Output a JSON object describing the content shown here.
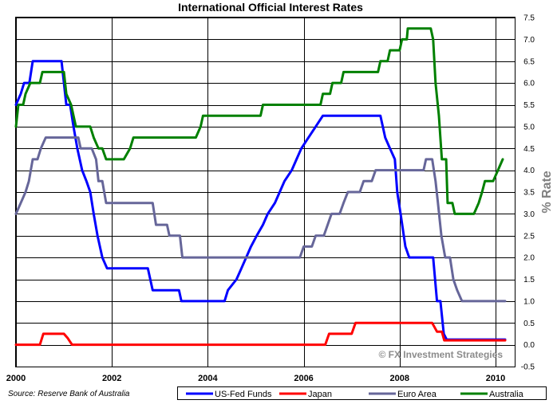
{
  "chart_data": {
    "type": "line",
    "title": "International Official Interest Rates",
    "ylabel": "% Rate",
    "source": "Source: Reserve Bank of Australia",
    "watermark": "© FX Investment Strategies",
    "ylim": [
      -0.5,
      7.5
    ],
    "xlim": [
      2000.0,
      2010.4
    ],
    "x_ticks": [
      "2000",
      "2002",
      "2004",
      "2006",
      "2008",
      "2010"
    ],
    "y_ticks": [
      "-0.5",
      "0.0",
      "0.5",
      "1.0",
      "1.5",
      "2.0",
      "2.5",
      "3.0",
      "3.5",
      "4.0",
      "4.5",
      "5.0",
      "5.5",
      "6.0",
      "6.5",
      "7.0",
      "7.5"
    ],
    "grid": true,
    "legend_position": "bottom",
    "series": [
      {
        "name": "US-Fed Funds",
        "color": "#0000ff",
        "points": [
          [
            2000.0,
            5.5
          ],
          [
            2000.1,
            5.75
          ],
          [
            2000.17,
            6.0
          ],
          [
            2000.28,
            6.0
          ],
          [
            2000.35,
            6.5
          ],
          [
            2000.95,
            6.5
          ],
          [
            2001.0,
            6.0
          ],
          [
            2001.05,
            5.5
          ],
          [
            2001.13,
            5.5
          ],
          [
            2001.2,
            5.0
          ],
          [
            2001.28,
            4.5
          ],
          [
            2001.38,
            4.0
          ],
          [
            2001.47,
            3.75
          ],
          [
            2001.55,
            3.5
          ],
          [
            2001.62,
            3.0
          ],
          [
            2001.7,
            2.5
          ],
          [
            2001.8,
            2.0
          ],
          [
            2001.9,
            1.75
          ],
          [
            2002.75,
            1.75
          ],
          [
            2002.85,
            1.25
          ],
          [
            2003.4,
            1.25
          ],
          [
            2003.45,
            1.0
          ],
          [
            2004.35,
            1.0
          ],
          [
            2004.42,
            1.25
          ],
          [
            2004.6,
            1.5
          ],
          [
            2004.7,
            1.75
          ],
          [
            2004.8,
            2.0
          ],
          [
            2004.9,
            2.25
          ],
          [
            2005.02,
            2.5
          ],
          [
            2005.15,
            2.75
          ],
          [
            2005.25,
            3.0
          ],
          [
            2005.4,
            3.25
          ],
          [
            2005.5,
            3.5
          ],
          [
            2005.6,
            3.75
          ],
          [
            2005.75,
            4.0
          ],
          [
            2005.85,
            4.25
          ],
          [
            2005.95,
            4.5
          ],
          [
            2006.1,
            4.75
          ],
          [
            2006.25,
            5.0
          ],
          [
            2006.4,
            5.25
          ],
          [
            2007.6,
            5.25
          ],
          [
            2007.7,
            4.75
          ],
          [
            2007.8,
            4.5
          ],
          [
            2007.9,
            4.25
          ],
          [
            2007.95,
            3.5
          ],
          [
            2008.02,
            3.0
          ],
          [
            2008.12,
            2.25
          ],
          [
            2008.2,
            2.0
          ],
          [
            2008.7,
            2.0
          ],
          [
            2008.78,
            1.0
          ],
          [
            2008.85,
            1.0
          ],
          [
            2008.92,
            0.25
          ],
          [
            2008.98,
            0.12
          ],
          [
            2010.2,
            0.12
          ]
        ]
      },
      {
        "name": "Japan",
        "color": "#ff0000",
        "points": [
          [
            2000.0,
            0.0
          ],
          [
            2000.5,
            0.0
          ],
          [
            2000.57,
            0.25
          ],
          [
            2001.0,
            0.25
          ],
          [
            2001.08,
            0.15
          ],
          [
            2001.17,
            0.0
          ],
          [
            2006.45,
            0.0
          ],
          [
            2006.53,
            0.25
          ],
          [
            2007.0,
            0.25
          ],
          [
            2007.08,
            0.5
          ],
          [
            2008.68,
            0.5
          ],
          [
            2008.78,
            0.3
          ],
          [
            2008.88,
            0.3
          ],
          [
            2008.93,
            0.1
          ],
          [
            2010.2,
            0.1
          ]
        ]
      },
      {
        "name": "Euro Area",
        "color": "#666699",
        "points": [
          [
            2000.0,
            3.0
          ],
          [
            2000.1,
            3.25
          ],
          [
            2000.2,
            3.5
          ],
          [
            2000.27,
            3.75
          ],
          [
            2000.35,
            4.25
          ],
          [
            2000.45,
            4.25
          ],
          [
            2000.52,
            4.5
          ],
          [
            2000.62,
            4.75
          ],
          [
            2001.3,
            4.75
          ],
          [
            2001.35,
            4.5
          ],
          [
            2001.58,
            4.5
          ],
          [
            2001.67,
            4.25
          ],
          [
            2001.72,
            3.75
          ],
          [
            2001.8,
            3.75
          ],
          [
            2001.88,
            3.25
          ],
          [
            2002.85,
            3.25
          ],
          [
            2002.92,
            2.75
          ],
          [
            2003.15,
            2.75
          ],
          [
            2003.2,
            2.5
          ],
          [
            2003.42,
            2.5
          ],
          [
            2003.47,
            2.0
          ],
          [
            2005.92,
            2.0
          ],
          [
            2006.0,
            2.25
          ],
          [
            2006.17,
            2.25
          ],
          [
            2006.25,
            2.5
          ],
          [
            2006.42,
            2.5
          ],
          [
            2006.5,
            2.75
          ],
          [
            2006.58,
            3.0
          ],
          [
            2006.75,
            3.0
          ],
          [
            2006.83,
            3.25
          ],
          [
            2006.92,
            3.5
          ],
          [
            2007.17,
            3.5
          ],
          [
            2007.25,
            3.75
          ],
          [
            2007.42,
            3.75
          ],
          [
            2007.5,
            4.0
          ],
          [
            2008.5,
            4.0
          ],
          [
            2008.55,
            4.25
          ],
          [
            2008.68,
            4.25
          ],
          [
            2008.75,
            3.75
          ],
          [
            2008.8,
            3.25
          ],
          [
            2008.87,
            2.5
          ],
          [
            2008.95,
            2.0
          ],
          [
            2009.05,
            2.0
          ],
          [
            2009.12,
            1.5
          ],
          [
            2009.2,
            1.25
          ],
          [
            2009.3,
            1.0
          ],
          [
            2010.2,
            1.0
          ]
        ]
      },
      {
        "name": "Australia",
        "color": "#008000",
        "points": [
          [
            2000.0,
            5.0
          ],
          [
            2000.05,
            5.5
          ],
          [
            2000.15,
            5.5
          ],
          [
            2000.2,
            5.75
          ],
          [
            2000.3,
            6.0
          ],
          [
            2000.5,
            6.0
          ],
          [
            2000.55,
            6.25
          ],
          [
            2001.0,
            6.25
          ],
          [
            2001.05,
            5.75
          ],
          [
            2001.15,
            5.5
          ],
          [
            2001.25,
            5.0
          ],
          [
            2001.55,
            5.0
          ],
          [
            2001.62,
            4.75
          ],
          [
            2001.72,
            4.5
          ],
          [
            2001.8,
            4.5
          ],
          [
            2001.88,
            4.25
          ],
          [
            2002.25,
            4.25
          ],
          [
            2002.38,
            4.5
          ],
          [
            2002.45,
            4.75
          ],
          [
            2003.75,
            4.75
          ],
          [
            2003.85,
            5.0
          ],
          [
            2003.9,
            5.25
          ],
          [
            2005.1,
            5.25
          ],
          [
            2005.15,
            5.5
          ],
          [
            2006.35,
            5.5
          ],
          [
            2006.4,
            5.75
          ],
          [
            2006.55,
            5.75
          ],
          [
            2006.6,
            6.0
          ],
          [
            2006.78,
            6.0
          ],
          [
            2006.83,
            6.25
          ],
          [
            2007.55,
            6.25
          ],
          [
            2007.6,
            6.5
          ],
          [
            2007.75,
            6.5
          ],
          [
            2007.8,
            6.75
          ],
          [
            2008.0,
            6.75
          ],
          [
            2008.05,
            7.0
          ],
          [
            2008.15,
            7.0
          ],
          [
            2008.17,
            7.25
          ],
          [
            2008.65,
            7.25
          ],
          [
            2008.7,
            7.0
          ],
          [
            2008.75,
            6.0
          ],
          [
            2008.82,
            5.25
          ],
          [
            2008.88,
            4.25
          ],
          [
            2008.97,
            4.25
          ],
          [
            2009.0,
            3.25
          ],
          [
            2009.1,
            3.25
          ],
          [
            2009.15,
            3.0
          ],
          [
            2009.55,
            3.0
          ],
          [
            2009.65,
            3.25
          ],
          [
            2009.72,
            3.5
          ],
          [
            2009.78,
            3.75
          ],
          [
            2009.95,
            3.75
          ],
          [
            2010.05,
            4.0
          ],
          [
            2010.15,
            4.25
          ]
        ]
      }
    ]
  }
}
